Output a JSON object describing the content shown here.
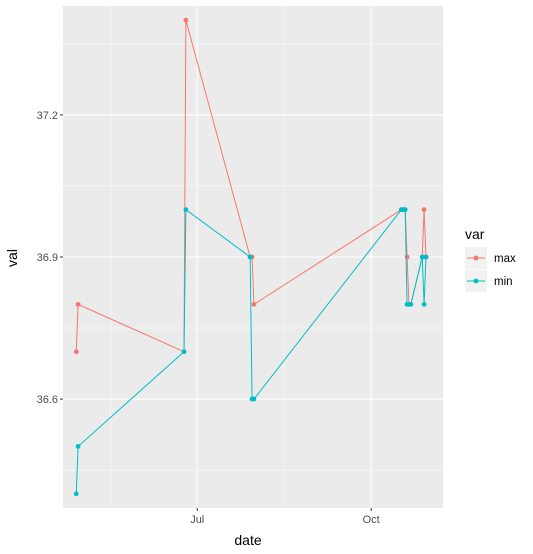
{
  "chart_data": {
    "type": "line",
    "title": "",
    "xlabel": "date",
    "ylabel": "val",
    "x_ticks": [
      {
        "label": "Jul",
        "value": "2017-07-01"
      },
      {
        "label": "Oct",
        "value": "2017-10-01"
      }
    ],
    "y_ticks": [
      {
        "label": "36.6",
        "value": 36.6
      },
      {
        "label": "36.9",
        "value": 36.9
      },
      {
        "label": "37.2",
        "value": 37.2
      }
    ],
    "xlim": [
      "2017-04-21",
      "2017-11-08"
    ],
    "ylim": [
      36.37,
      37.43
    ],
    "grid": true,
    "legend": {
      "title": "var",
      "position": "right"
    },
    "series": [
      {
        "name": "max",
        "color": "#F8766D",
        "points": [
          {
            "x": "2017-04-28",
            "y": 36.7
          },
          {
            "x": "2017-04-29",
            "y": 36.8
          },
          {
            "x": "2017-06-24",
            "y": 36.7
          },
          {
            "x": "2017-06-25",
            "y": 37.4
          },
          {
            "x": "2017-07-29",
            "y": 36.9
          },
          {
            "x": "2017-07-30",
            "y": 36.9
          },
          {
            "x": "2017-07-31",
            "y": 36.8
          },
          {
            "x": "2017-10-17",
            "y": 37.0
          },
          {
            "x": "2017-10-18",
            "y": 37.0
          },
          {
            "x": "2017-10-19",
            "y": 37.0
          },
          {
            "x": "2017-10-20",
            "y": 36.9
          },
          {
            "x": "2017-10-21",
            "y": 36.8
          },
          {
            "x": "2017-10-22",
            "y": 36.8
          },
          {
            "x": "2017-10-28",
            "y": 36.9
          },
          {
            "x": "2017-10-29",
            "y": 37.0
          },
          {
            "x": "2017-10-30",
            "y": 36.9
          }
        ]
      },
      {
        "name": "min",
        "color": "#00BFC4",
        "points": [
          {
            "x": "2017-04-28",
            "y": 36.4
          },
          {
            "x": "2017-04-29",
            "y": 36.5
          },
          {
            "x": "2017-06-24",
            "y": 36.7
          },
          {
            "x": "2017-06-25",
            "y": 37.0
          },
          {
            "x": "2017-07-29",
            "y": 36.9
          },
          {
            "x": "2017-07-30",
            "y": 36.6
          },
          {
            "x": "2017-07-31",
            "y": 36.6
          },
          {
            "x": "2017-10-17",
            "y": 37.0
          },
          {
            "x": "2017-10-18",
            "y": 37.0
          },
          {
            "x": "2017-10-19",
            "y": 37.0
          },
          {
            "x": "2017-10-20",
            "y": 36.8
          },
          {
            "x": "2017-10-21",
            "y": 36.8
          },
          {
            "x": "2017-10-22",
            "y": 36.8
          },
          {
            "x": "2017-10-28",
            "y": 36.9
          },
          {
            "x": "2017-10-29",
            "y": 36.8
          },
          {
            "x": "2017-10-30",
            "y": 36.9
          }
        ]
      }
    ]
  }
}
